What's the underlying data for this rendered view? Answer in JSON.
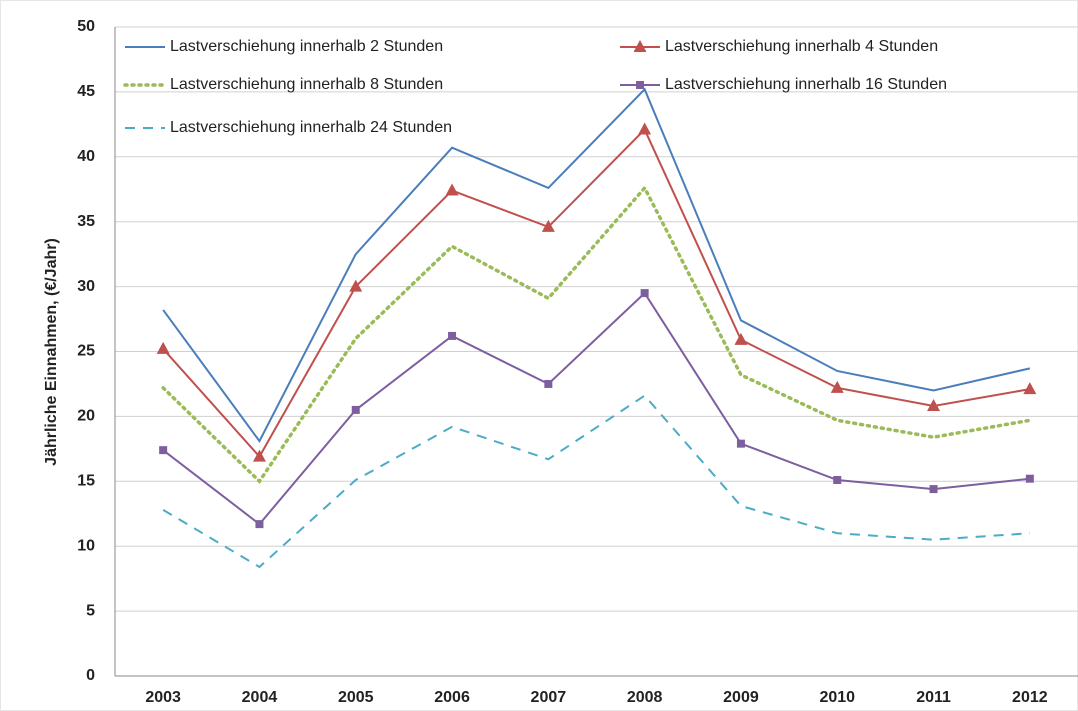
{
  "chart_data": {
    "type": "line",
    "y_label": "Jährliche Einnahmen, (€/Jahr)",
    "categories": [
      "2003",
      "2004",
      "2005",
      "2006",
      "2007",
      "2008",
      "2009",
      "2010",
      "2011",
      "2012"
    ],
    "series": [
      {
        "name": "Lastverschiehung innerhalb 2 Stunden",
        "color": "#4a7ebb",
        "dash": "solid",
        "marker": "none",
        "values": [
          28.2,
          18.1,
          32.5,
          40.7,
          37.6,
          45.2,
          27.4,
          23.5,
          22.0,
          23.7
        ]
      },
      {
        "name": "Lastverschiehung innerhalb 4 Stunden",
        "color": "#c0504d",
        "dash": "solid",
        "marker": "triangle",
        "values": [
          25.2,
          16.9,
          30.0,
          37.4,
          34.6,
          42.1,
          25.9,
          22.2,
          20.8,
          22.1
        ]
      },
      {
        "name": "Lastverschiehung innerhalb 8 Stunden",
        "color": "#9bbb59",
        "dash": "dotted",
        "marker": "none",
        "values": [
          22.2,
          15.0,
          26.0,
          33.1,
          29.1,
          37.6,
          23.2,
          19.7,
          18.4,
          19.7
        ]
      },
      {
        "name": "Lastverschiehung innerhalb 16 Stunden",
        "color": "#7d5fa0",
        "dash": "solid",
        "marker": "square",
        "values": [
          17.4,
          11.7,
          20.5,
          26.2,
          22.5,
          29.5,
          17.9,
          15.1,
          14.4,
          15.2
        ]
      },
      {
        "name": "Lastverschiehung innerhalb 24 Stunden",
        "color": "#4bacc6",
        "dash": "dashed",
        "marker": "none",
        "values": [
          12.8,
          8.4,
          15.1,
          19.2,
          16.7,
          21.6,
          13.1,
          11.0,
          10.5,
          11.0
        ]
      }
    ],
    "ylim": [
      0,
      50
    ],
    "yticks": [
      0,
      5,
      10,
      15,
      20,
      25,
      30,
      35,
      40,
      45,
      50
    ],
    "grid": true
  }
}
